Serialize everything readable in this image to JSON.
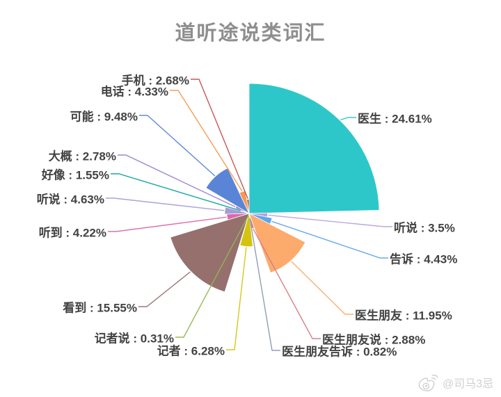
{
  "chart_data": {
    "type": "pie",
    "variant": "nightingale-rose",
    "title": "道听途说类词汇",
    "unit": "%",
    "total": 100.0,
    "start_angle": "top",
    "direction": "clockwise",
    "radius_mode": "value-proportional",
    "legend": "none",
    "label_position": "outside-with-leader-lines",
    "slices": [
      {
        "name": "医生",
        "value": 24.61,
        "label": "医生 : 24.61%",
        "color": "#2ec7c9"
      },
      {
        "name": "听说",
        "value": 3.5,
        "label": "听说 : 3.5%",
        "color": "#b6a2de"
      },
      {
        "name": "告诉",
        "value": 4.43,
        "label": "告诉 : 4.43%",
        "color": "#60a5ea"
      },
      {
        "name": "医生朋友",
        "value": 11.95,
        "label": "医生朋友 : 11.95%",
        "color": "#fcab6d"
      },
      {
        "name": "医生朋友说",
        "value": 2.88,
        "label": "医生朋友说 : 2.88%",
        "color": "#d87a80"
      },
      {
        "name": "医生朋友告诉",
        "value": 0.82,
        "label": "医生朋友告诉 : 0.82%",
        "color": "#8d98b3"
      },
      {
        "name": "记者",
        "value": 6.28,
        "label": "记者 : 6.28%",
        "color": "#d5c40d"
      },
      {
        "name": "记者说",
        "value": 0.31,
        "label": "记者说 : 0.31%",
        "color": "#97b552"
      },
      {
        "name": "看到",
        "value": 15.55,
        "label": "看到 : 15.55%",
        "color": "#95706d"
      },
      {
        "name": "听到",
        "value": 4.22,
        "label": "听到 : 4.22%",
        "color": "#dc69aa"
      },
      {
        "name": "听说",
        "value": 4.63,
        "label": "听说 : 4.63%",
        "color": "#a59dd8"
      },
      {
        "name": "好像",
        "value": 1.55,
        "label": "好像 : 1.55%",
        "color": "#0da29f"
      },
      {
        "name": "大概",
        "value": 2.78,
        "label": "大概 : 2.78%",
        "color": "#9a7fd1"
      },
      {
        "name": "可能",
        "value": 9.48,
        "label": "可能 : 9.48%",
        "color": "#5a85d7"
      },
      {
        "name": "电话",
        "value": 4.33,
        "label": "电话 : 4.33%",
        "color": "#f5994e"
      },
      {
        "name": "手机",
        "value": 2.68,
        "label": "手机 : 2.68%",
        "color": "#c05050"
      }
    ]
  },
  "watermark": {
    "text": "@司马3忌",
    "icon": "weibo-icon",
    "color": "#cfcfcf"
  }
}
